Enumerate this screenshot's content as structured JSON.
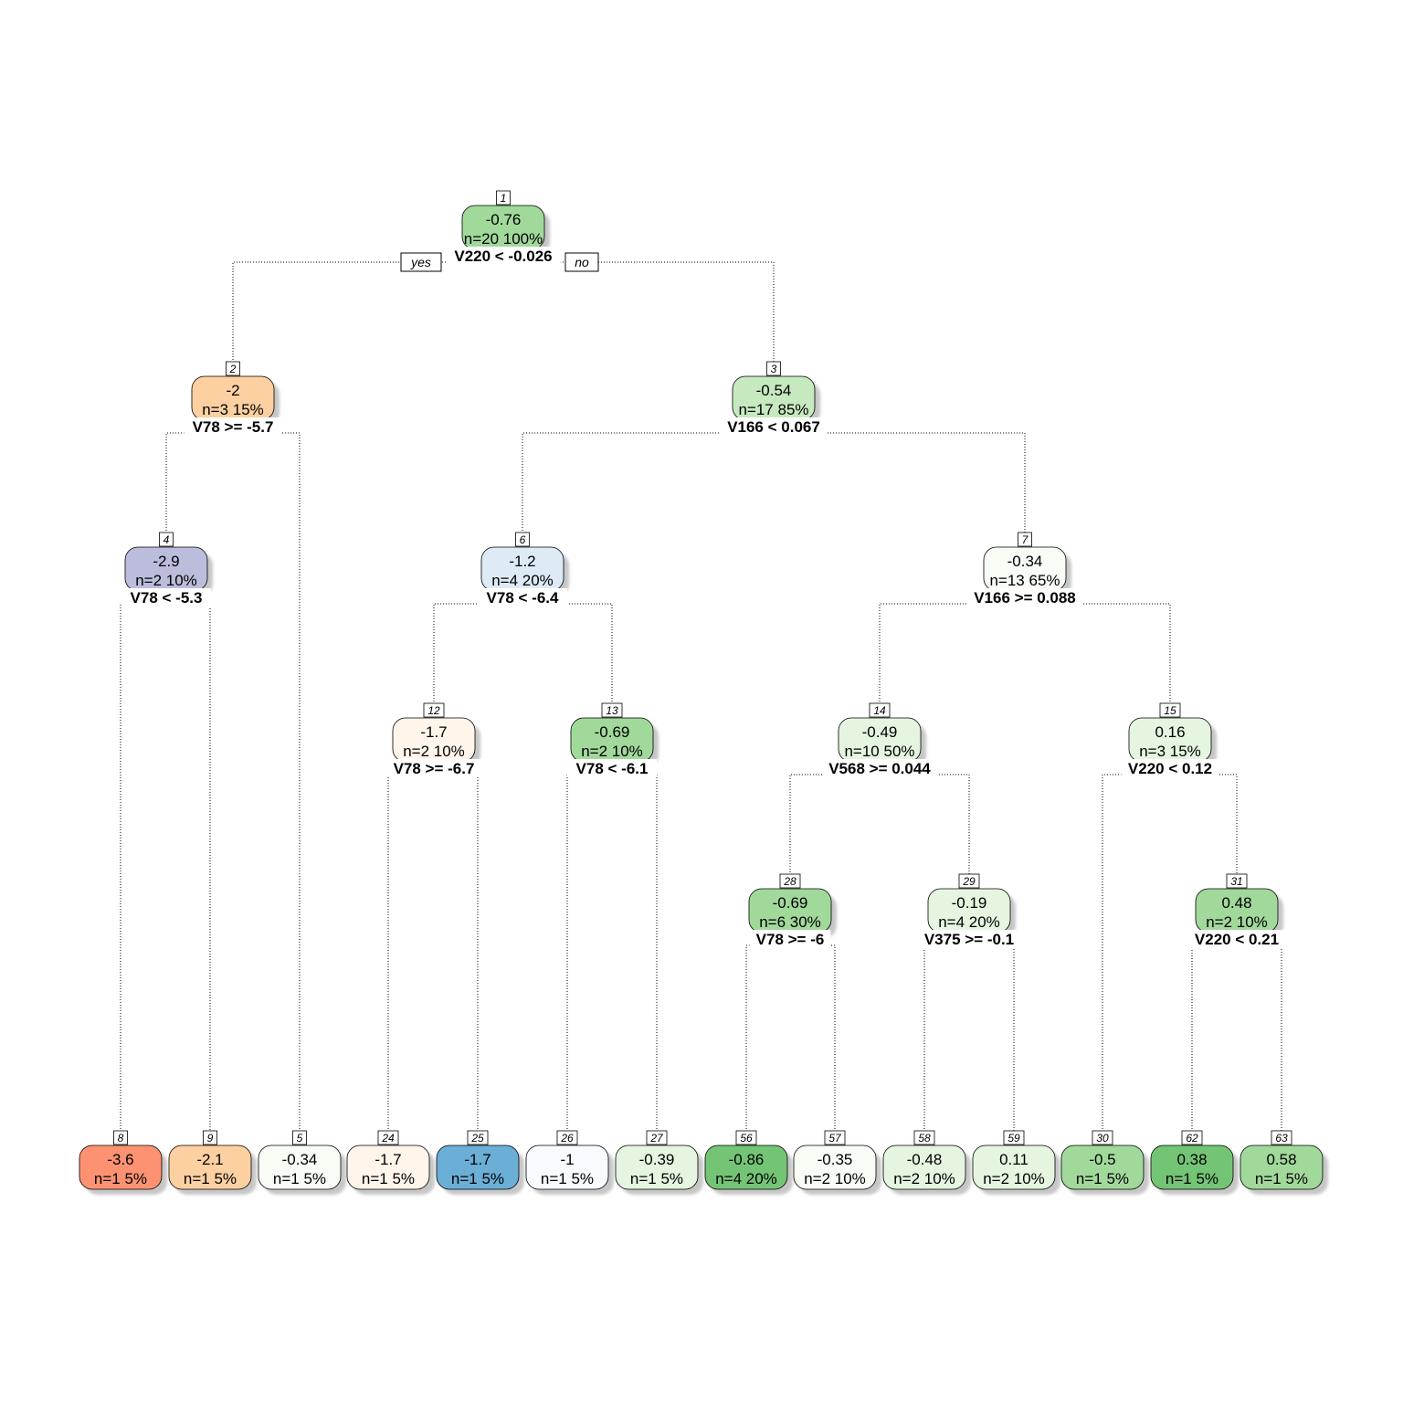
{
  "diagram": {
    "branch_labels": {
      "yes": "yes",
      "no": "no"
    },
    "nodes": [
      {
        "id": "1",
        "value": "-0.76",
        "stats": "n=20  100%",
        "color": "#a1d99b",
        "split": "V220 < -0.026",
        "children": [
          "2",
          "3"
        ]
      },
      {
        "id": "2",
        "value": "-2",
        "stats": "n=3  15%",
        "color": "#fdd0a2",
        "split": "V78 >= -5.7",
        "children": [
          "4",
          "5"
        ]
      },
      {
        "id": "3",
        "value": "-0.54",
        "stats": "n=17  85%",
        "color": "#c7e9c0",
        "split": "V166 < 0.067",
        "children": [
          "6",
          "7"
        ]
      },
      {
        "id": "4",
        "value": "-2.9",
        "stats": "n=2  10%",
        "color": "#bcbddc",
        "split": "V78 < -5.3",
        "children": [
          "8",
          "9"
        ]
      },
      {
        "id": "6",
        "value": "-1.2",
        "stats": "n=4  20%",
        "color": "#deebf7",
        "split": "V78 < -6.4",
        "children": [
          "12",
          "13"
        ]
      },
      {
        "id": "7",
        "value": "-0.34",
        "stats": "n=13  65%",
        "color": "#f7fcf5",
        "split": "V166 >= 0.088",
        "children": [
          "14",
          "15"
        ]
      },
      {
        "id": "12",
        "value": "-1.7",
        "stats": "n=2  10%",
        "color": "#fff5eb",
        "split": "V78 >= -6.7",
        "children": [
          "24",
          "25"
        ]
      },
      {
        "id": "13",
        "value": "-0.69",
        "stats": "n=2  10%",
        "color": "#a1d99b",
        "split": "V78 < -6.1",
        "children": [
          "26",
          "27"
        ]
      },
      {
        "id": "14",
        "value": "-0.49",
        "stats": "n=10  50%",
        "color": "#e5f5e0",
        "split": "V568 >= 0.044",
        "children": [
          "28",
          "29"
        ]
      },
      {
        "id": "15",
        "value": "0.16",
        "stats": "n=3  15%",
        "color": "#e5f5e0",
        "split": "V220 < 0.12",
        "children": [
          "30",
          "31"
        ]
      },
      {
        "id": "28",
        "value": "-0.69",
        "stats": "n=6  30%",
        "color": "#a1d99b",
        "split": "V78 >= -6",
        "children": [
          "56",
          "57"
        ]
      },
      {
        "id": "29",
        "value": "-0.19",
        "stats": "n=4  20%",
        "color": "#e5f5e0",
        "split": "V375 >= -0.1",
        "children": [
          "58",
          "59"
        ]
      },
      {
        "id": "31",
        "value": "0.48",
        "stats": "n=2  10%",
        "color": "#a1d99b",
        "split": "V220 < 0.21",
        "children": [
          "62",
          "63"
        ]
      },
      {
        "id": "8",
        "value": "-3.6",
        "stats": "n=1  5%",
        "color": "#fc9272",
        "split": "",
        "children": []
      },
      {
        "id": "9",
        "value": "-2.1",
        "stats": "n=1  5%",
        "color": "#fdd0a2",
        "split": "",
        "children": []
      },
      {
        "id": "5",
        "value": "-0.34",
        "stats": "n=1  5%",
        "color": "#f7fcf5",
        "split": "",
        "children": []
      },
      {
        "id": "24",
        "value": "-1.7",
        "stats": "n=1  5%",
        "color": "#fff5eb",
        "split": "",
        "children": []
      },
      {
        "id": "25",
        "value": "-1.7",
        "stats": "n=1  5%",
        "color": "#6baed6",
        "split": "",
        "children": []
      },
      {
        "id": "26",
        "value": "-1",
        "stats": "n=1  5%",
        "color": "#f7fbff",
        "split": "",
        "children": []
      },
      {
        "id": "27",
        "value": "-0.39",
        "stats": "n=1  5%",
        "color": "#e5f5e0",
        "split": "",
        "children": []
      },
      {
        "id": "56",
        "value": "-0.86",
        "stats": "n=4  20%",
        "color": "#74c476",
        "split": "",
        "children": []
      },
      {
        "id": "57",
        "value": "-0.35",
        "stats": "n=2  10%",
        "color": "#f7fcf5",
        "split": "",
        "children": []
      },
      {
        "id": "58",
        "value": "-0.48",
        "stats": "n=2  10%",
        "color": "#e5f5e0",
        "split": "",
        "children": []
      },
      {
        "id": "59",
        "value": "0.11",
        "stats": "n=2  10%",
        "color": "#e5f5e0",
        "split": "",
        "children": []
      },
      {
        "id": "30",
        "value": "-0.5",
        "stats": "n=1  5%",
        "color": "#a1d99b",
        "split": "",
        "children": []
      },
      {
        "id": "62",
        "value": "0.38",
        "stats": "n=1  5%",
        "color": "#74c476",
        "split": "",
        "children": []
      },
      {
        "id": "63",
        "value": "0.58",
        "stats": "n=1  5%",
        "color": "#a1d99b",
        "split": "",
        "children": []
      }
    ]
  }
}
